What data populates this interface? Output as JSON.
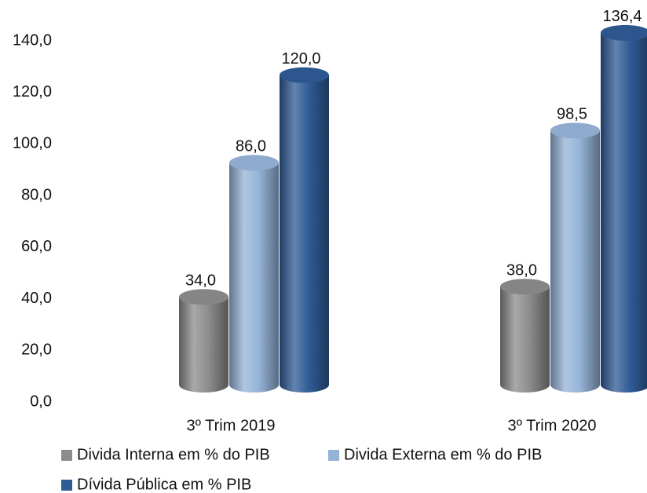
{
  "chart_data": {
    "type": "bar",
    "categories": [
      "3º Trim 2019",
      "3º Trim 2020"
    ],
    "series": [
      {
        "name": "Divida Interna em % do PIB",
        "color": "#8c8c8c",
        "values": [
          34.0,
          38.0
        ],
        "value_labels": [
          "34,0",
          "38,0"
        ]
      },
      {
        "name": "Divida Externa em % do PIB",
        "color": "#95b3d7",
        "values": [
          86.0,
          98.5
        ],
        "value_labels": [
          "86,0",
          "98,5"
        ]
      },
      {
        "name": "Dívida Pública em % PIB",
        "color": "#2f5b96",
        "values": [
          120.0,
          136.4
        ],
        "value_labels": [
          "120,0",
          "136,4"
        ]
      }
    ],
    "ylim": [
      0,
      140
    ],
    "yticks": [
      {
        "value": 0,
        "label": "0,0"
      },
      {
        "value": 20,
        "label": "20,0"
      },
      {
        "value": 40,
        "label": "40,0"
      },
      {
        "value": 60,
        "label": "60,0"
      },
      {
        "value": 80,
        "label": "80,0"
      },
      {
        "value": 100,
        "label": "100,0"
      },
      {
        "value": 120,
        "label": "120,0"
      },
      {
        "value": 140,
        "label": "140,0"
      }
    ],
    "grid": false
  }
}
